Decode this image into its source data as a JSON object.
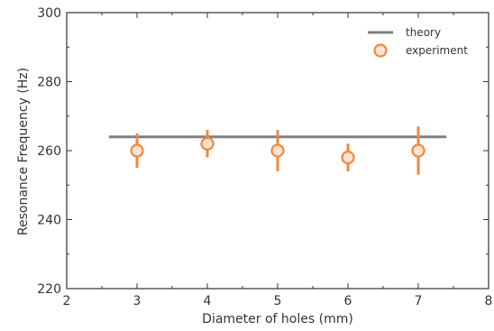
{
  "chart_data": {
    "type": "scatter",
    "xlabel": "Diameter of holes (mm)",
    "ylabel": "Resonance Frequency (Hz)",
    "xlim": [
      2,
      8
    ],
    "ylim": [
      220,
      300
    ],
    "xticks": [
      "2",
      "3",
      "4",
      "5",
      "6",
      "7",
      "8"
    ],
    "yticks": [
      "220",
      "240",
      "260",
      "280",
      "300"
    ],
    "grid": false,
    "legend_position": "top-right",
    "series": [
      {
        "name": "theory",
        "type": "line",
        "color": "#808080",
        "x": [
          2.6,
          7.4
        ],
        "y": [
          264,
          264
        ]
      },
      {
        "name": "experiment",
        "type": "scatter",
        "marker": "open-circle",
        "color": "#f0883e",
        "x": [
          3,
          4,
          5,
          6,
          7
        ],
        "y": [
          260,
          262,
          260,
          258,
          260
        ],
        "yerr_low": [
          255,
          258,
          254,
          254,
          253
        ],
        "yerr_high": [
          265,
          266,
          266,
          262,
          267
        ]
      }
    ]
  }
}
